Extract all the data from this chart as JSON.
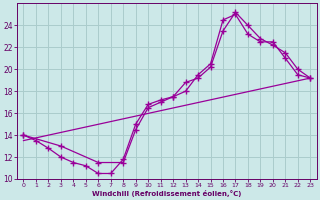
{
  "xlabel": "Windchill (Refroidissement éolien,°C)",
  "bg_color": "#cce8e8",
  "grid_color": "#aacccc",
  "line_color": "#990099",
  "spine_color": "#660066",
  "xlim": [
    -0.5,
    23.5
  ],
  "ylim": [
    10,
    26
  ],
  "yticks": [
    10,
    12,
    14,
    16,
    18,
    20,
    22,
    24
  ],
  "xticks": [
    0,
    1,
    2,
    3,
    4,
    5,
    6,
    7,
    8,
    9,
    10,
    11,
    12,
    13,
    14,
    15,
    16,
    17,
    18,
    19,
    20,
    21,
    22,
    23
  ],
  "line1_x": [
    0,
    1,
    2,
    3,
    4,
    5,
    6,
    7,
    8,
    9,
    10,
    11,
    12,
    13,
    14,
    15,
    16,
    17,
    18,
    19,
    20,
    21,
    22,
    23
  ],
  "line1_y": [
    14.0,
    13.5,
    12.8,
    12.0,
    11.5,
    11.2,
    10.5,
    10.5,
    11.8,
    15.0,
    16.8,
    17.2,
    17.5,
    18.8,
    19.2,
    20.2,
    23.5,
    25.2,
    24.0,
    22.8,
    22.2,
    21.5,
    20.0,
    19.2
  ],
  "line2_x": [
    0,
    3,
    6,
    8,
    9,
    10,
    11,
    12,
    13,
    14,
    15,
    16,
    17,
    18,
    19,
    20,
    21,
    22,
    23
  ],
  "line2_y": [
    14.0,
    13.0,
    11.5,
    11.5,
    14.5,
    16.5,
    17.0,
    17.5,
    18.0,
    19.5,
    20.5,
    24.5,
    25.0,
    23.2,
    22.5,
    22.5,
    21.0,
    19.5,
    19.2
  ],
  "line3_x": [
    0,
    23
  ],
  "line3_y": [
    13.5,
    19.2
  ]
}
